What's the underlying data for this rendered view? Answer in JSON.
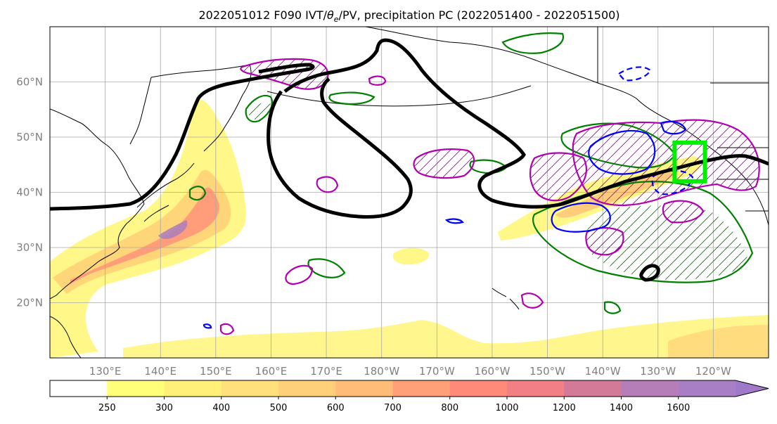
{
  "figure": {
    "title_prefix": "2022051012 F090 IVT/",
    "title_theta": "θ",
    "title_sub": "e",
    "title_suffix": "/PV, precipitation PC (2022051400 - 2022051500)"
  },
  "map": {
    "lon_range": [
      120,
      250
    ],
    "lat_range": [
      10,
      70
    ],
    "lat_ticks": [
      {
        "value": 60,
        "label": "60°N"
      },
      {
        "value": 50,
        "label": "50°N"
      },
      {
        "value": 40,
        "label": "40°N"
      },
      {
        "value": 30,
        "label": "30°N"
      },
      {
        "value": 20,
        "label": "20°N"
      }
    ],
    "lon_ticks": [
      {
        "value": 130,
        "label": "130°E"
      },
      {
        "value": 140,
        "label": "140°E"
      },
      {
        "value": 150,
        "label": "150°E"
      },
      {
        "value": 160,
        "label": "160°E"
      },
      {
        "value": 170,
        "label": "170°E"
      },
      {
        "value": 180,
        "label": "180°W"
      },
      {
        "value": 190,
        "label": "170°W"
      },
      {
        "value": 200,
        "label": "160°W"
      },
      {
        "value": 210,
        "label": "150°W"
      },
      {
        "value": 220,
        "label": "140°W"
      },
      {
        "value": 230,
        "label": "130°W"
      },
      {
        "value": 240,
        "label": "120°W"
      }
    ],
    "gridlines": true,
    "target_box": {
      "lon": [
        233,
        238.5
      ],
      "lat": [
        42,
        49
      ],
      "color": "#00ee00"
    },
    "colors": {
      "pv_contour": "#000000",
      "theta_e_contour": "#008000",
      "pc_positive": "#b000b0",
      "pc_negative": "#0000ff",
      "coastline": "#000000"
    }
  },
  "colorbar": {
    "levels": [
      250,
      300,
      400,
      500,
      600,
      700,
      800,
      1000,
      1200,
      1400,
      1600
    ],
    "colors": [
      "#ffffff",
      "#ffff7a",
      "#fff07a",
      "#ffe07a",
      "#ffd07a",
      "#ffbc78",
      "#ffa078",
      "#ff8a7a",
      "#f27e86",
      "#d27a98",
      "#b67eb8",
      "#a87ec4"
    ],
    "extend": "max"
  }
}
